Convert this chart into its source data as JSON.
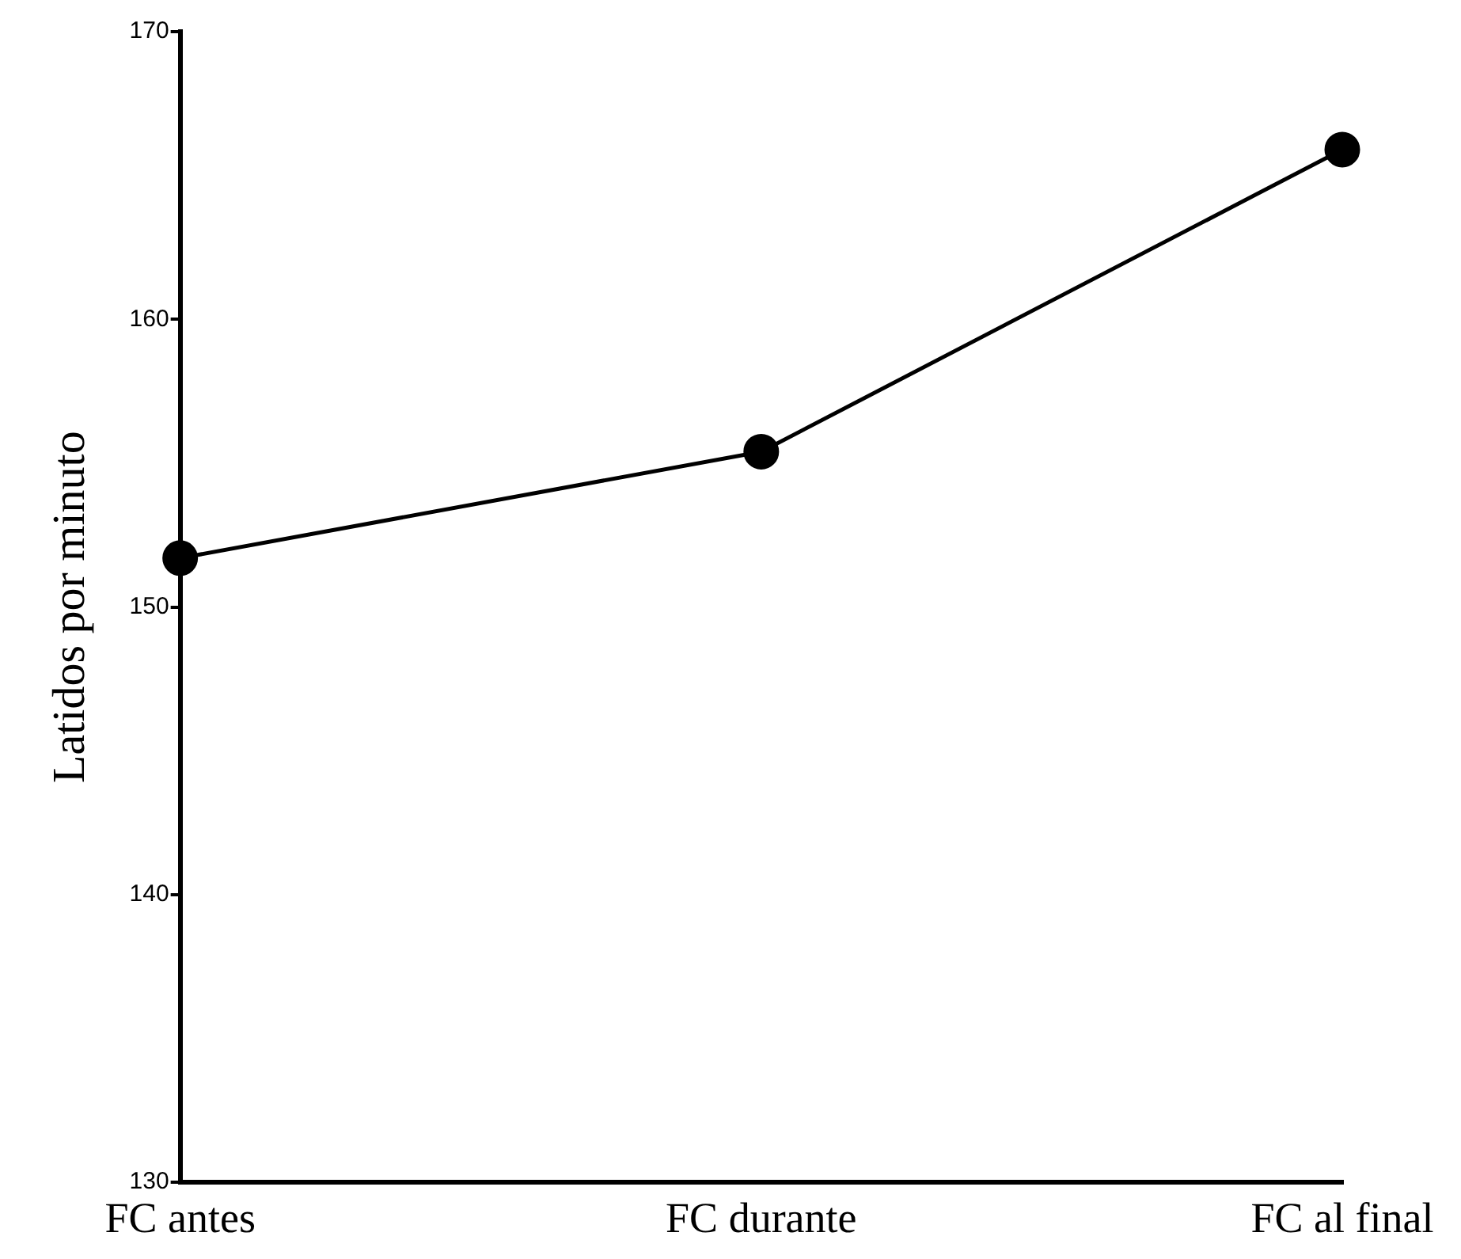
{
  "chart_data": {
    "type": "line",
    "ylabel": "Latidos por minuto",
    "categories": [
      "FC antes",
      "FC durante",
      "FC al final"
    ],
    "series": [
      {
        "color": "#000000",
        "values": [
          151.7,
          155.4,
          165.9
        ]
      }
    ],
    "ylim": [
      130,
      170
    ],
    "yticks": [
      130,
      140,
      150,
      160,
      170
    ],
    "grid": false,
    "legend": false,
    "marker": "circle",
    "line_style": "solid"
  }
}
